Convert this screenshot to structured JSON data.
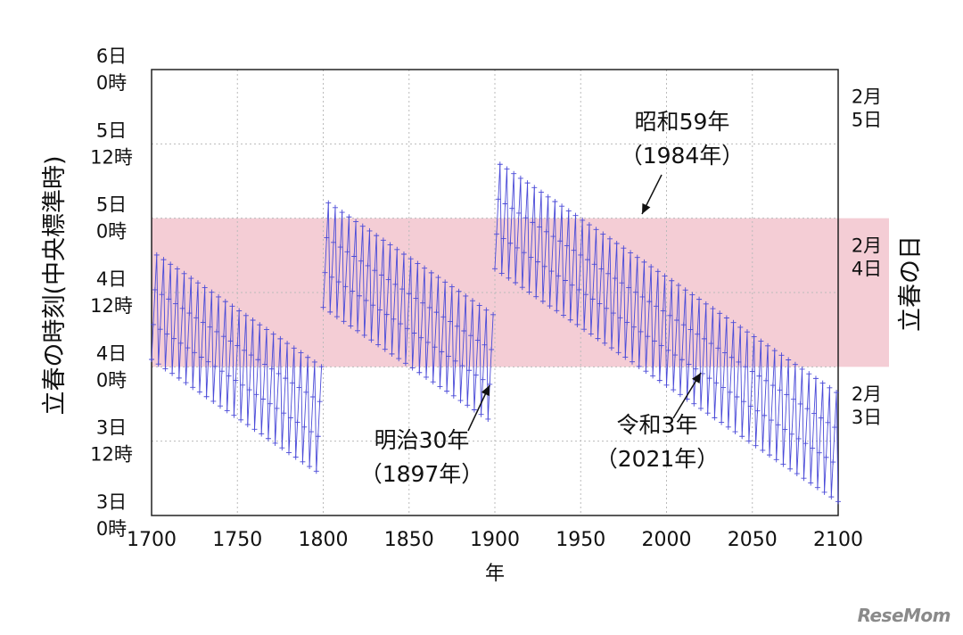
{
  "chart_data": {
    "type": "line",
    "ylabel": "立春の時刻(中央標準時)",
    "ylabel_right": "立春の日",
    "xlabel": "年",
    "xlim": [
      1700,
      2100
    ],
    "x_ticks": [
      "1700",
      "1750",
      "1800",
      "1850",
      "1900",
      "1950",
      "2000",
      "2050",
      "2100"
    ],
    "ylim_days": [
      3.0,
      6.0
    ],
    "y_ticks": [
      {
        "day": "3日",
        "time": "0時"
      },
      {
        "day": "3日",
        "time": "12時"
      },
      {
        "day": "4日",
        "time": "0時"
      },
      {
        "day": "4日",
        "time": "12時"
      },
      {
        "day": "5日",
        "time": "0時"
      },
      {
        "day": "5日",
        "time": "12時"
      },
      {
        "day": "6日",
        "time": "0時"
      }
    ],
    "right_ticks": [
      {
        "month": "2月",
        "day": "3日"
      },
      {
        "month": "2月",
        "day": "4日"
      },
      {
        "month": "2月",
        "day": "5日"
      }
    ],
    "highlight_band": {
      "from_days": 4.0,
      "to_days": 5.0,
      "color": "#f4cdd5"
    },
    "grid": true,
    "line_color": "#4b4bd8",
    "segments": [
      {
        "start_year": 1700,
        "end_year": 1799,
        "start_day": 4.05,
        "offsets": [
          0,
          0.242,
          0.484,
          0.726
        ],
        "first_leap_index": 0,
        "drift_per_year": -0.00783
      },
      {
        "start_year": 1800,
        "end_year": 1899,
        "start_day": 4.4,
        "offsets": [
          0,
          0.242,
          0.484,
          0.726
        ],
        "first_leap_index": 0,
        "drift_per_year": -0.00783
      },
      {
        "start_year": 1900,
        "end_year": 2100,
        "start_day": 4.66,
        "offsets": [
          0,
          0.242,
          0.484,
          0.726
        ],
        "first_leap_index": 0,
        "drift_per_year": -0.00783
      }
    ],
    "annotations": [
      {
        "line1": "昭和59年",
        "line2": "（1984年）",
        "year": 1984
      },
      {
        "line1": "明治30年",
        "line2": "（1897年）",
        "year": 1897
      },
      {
        "line1": "令和3年",
        "line2": "（2021年）",
        "year": 2021
      }
    ]
  },
  "watermark": "ReseMom"
}
